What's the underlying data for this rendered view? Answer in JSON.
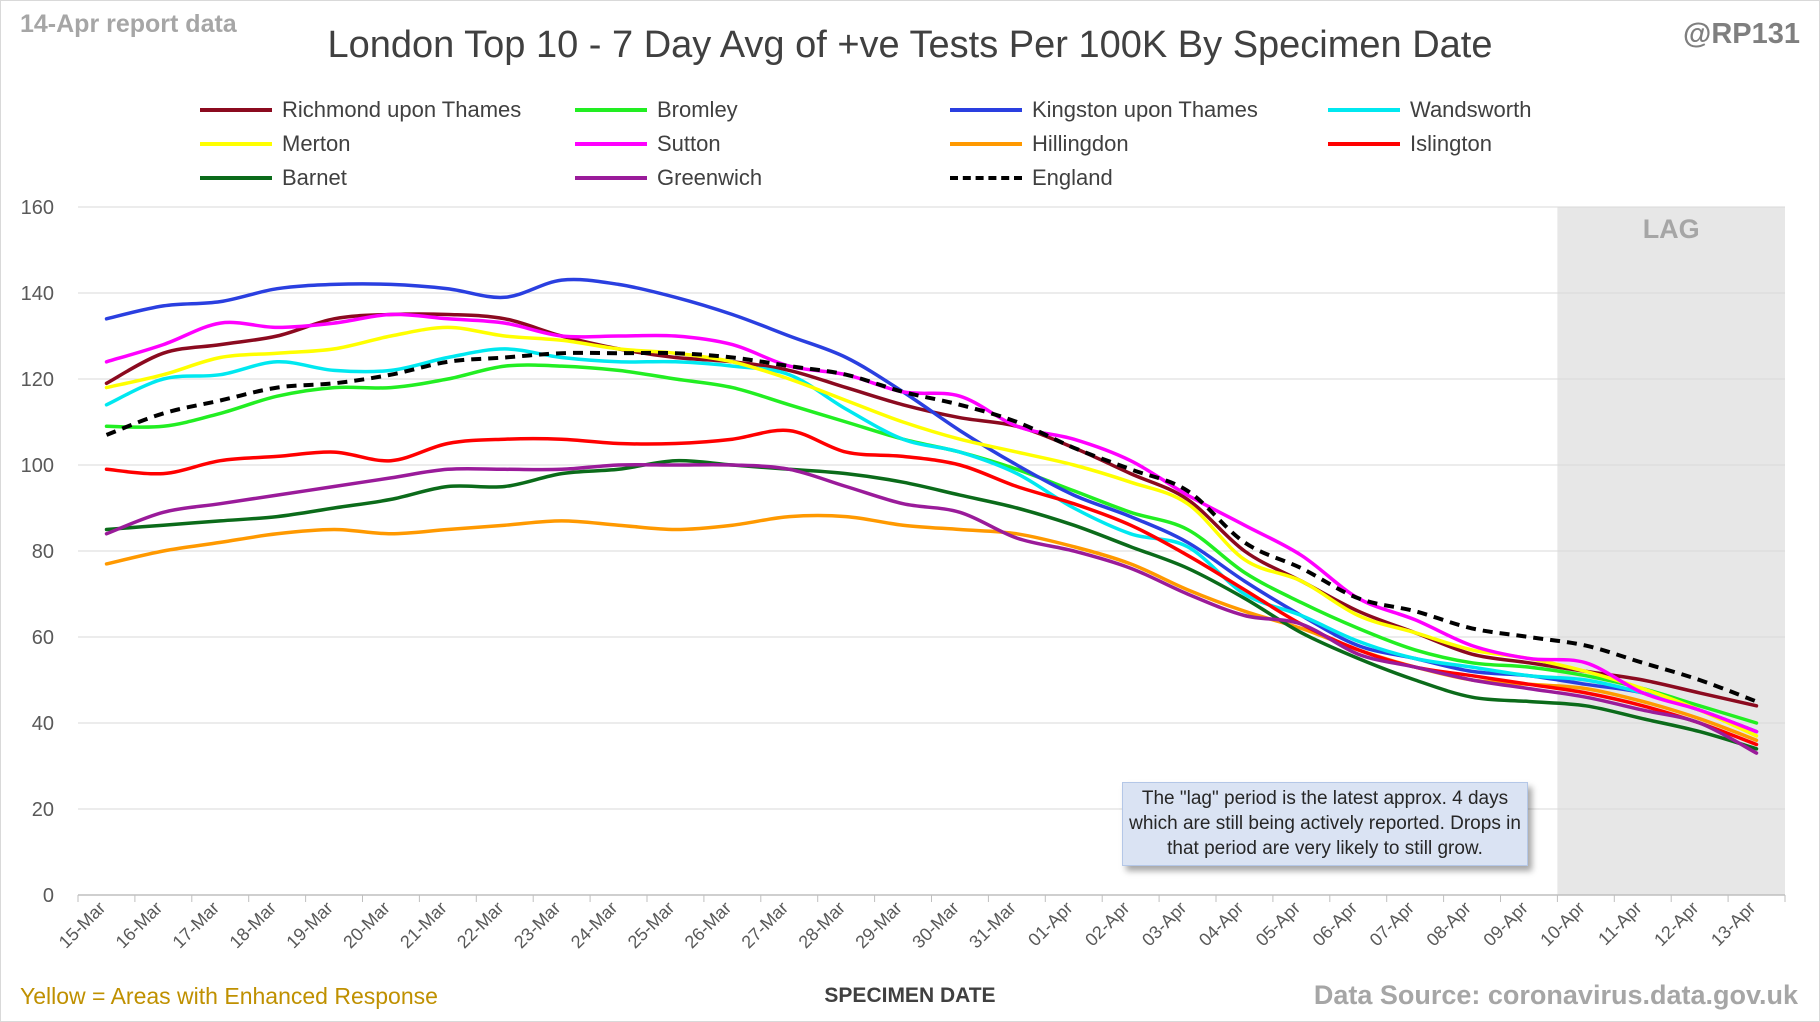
{
  "header": {
    "report_tag": "14-Apr report data",
    "handle": "@RP131",
    "title": "London Top 10 - 7 Day Avg of +ve Tests Per 100K By Specimen Date"
  },
  "footer": {
    "note_left": "Yellow = Areas with Enhanced Response",
    "x_axis_title": "SPECIMEN DATE",
    "source": "Data Source: coronavirus.data.gov.uk"
  },
  "annotation": {
    "lag_label": "LAG",
    "note": "The \"lag\" period is the latest approx. 4 days which are still being actively reported. Drops in that period are very likely to still grow."
  },
  "chart_data": {
    "type": "line",
    "title": "London Top 10 - 7 Day Avg of +ve Tests Per 100K By Specimen Date",
    "xlabel": "SPECIMEN DATE",
    "ylabel": "",
    "ylim": [
      0,
      160
    ],
    "yticks": [
      0,
      20,
      40,
      60,
      80,
      100,
      120,
      140,
      160
    ],
    "grid": true,
    "legend_position": "top",
    "shaded_region": {
      "label": "LAG",
      "from": "10-Apr",
      "to": "13-Apr",
      "color": "#e7e7e7"
    },
    "x": [
      "15-Mar",
      "16-Mar",
      "17-Mar",
      "18-Mar",
      "19-Mar",
      "20-Mar",
      "21-Mar",
      "22-Mar",
      "23-Mar",
      "24-Mar",
      "25-Mar",
      "26-Mar",
      "27-Mar",
      "28-Mar",
      "29-Mar",
      "30-Mar",
      "31-Mar",
      "01-Apr",
      "02-Apr",
      "03-Apr",
      "04-Apr",
      "05-Apr",
      "06-Apr",
      "07-Apr",
      "08-Apr",
      "09-Apr",
      "10-Apr",
      "11-Apr",
      "12-Apr",
      "13-Apr"
    ],
    "series": [
      {
        "name": "Richmond upon Thames",
        "color": "#8b0a1f",
        "dashed": false,
        "values": [
          119,
          126,
          128,
          130,
          134,
          135,
          135,
          134,
          130,
          127,
          125,
          124,
          122,
          118,
          114,
          111,
          109,
          104,
          98,
          92,
          80,
          73,
          66,
          61,
          56,
          54,
          52,
          50,
          47,
          44
        ]
      },
      {
        "name": "Bromley",
        "color": "#22ee22",
        "dashed": false,
        "values": [
          109,
          109,
          112,
          116,
          118,
          118,
          120,
          123,
          123,
          122,
          120,
          118,
          114,
          110,
          106,
          103,
          99,
          94,
          89,
          85,
          75,
          68,
          62,
          57,
          54,
          53,
          51,
          48,
          44,
          40
        ]
      },
      {
        "name": "Kingston upon Thames",
        "color": "#2a3fe0",
        "dashed": false,
        "values": [
          134,
          137,
          138,
          141,
          142,
          142,
          141,
          139,
          143,
          142,
          139,
          135,
          130,
          125,
          117,
          108,
          100,
          93,
          88,
          82,
          73,
          65,
          58,
          55,
          52,
          51,
          49,
          47,
          43,
          38
        ]
      },
      {
        "name": "Wandsworth",
        "color": "#00e8f0",
        "dashed": false,
        "values": [
          114,
          120,
          121,
          124,
          122,
          122,
          125,
          127,
          125,
          124,
          124,
          123,
          121,
          113,
          106,
          103,
          98,
          90,
          84,
          81,
          70,
          65,
          59,
          55,
          53,
          51,
          50,
          47,
          43,
          38
        ]
      },
      {
        "name": "Merton",
        "color": "#ffff00",
        "dashed": false,
        "values": [
          118,
          121,
          125,
          126,
          127,
          130,
          132,
          130,
          129,
          127,
          126,
          124,
          120,
          115,
          110,
          106,
          103,
          100,
          96,
          91,
          78,
          73,
          65,
          61,
          57,
          55,
          52,
          48,
          43,
          37
        ]
      },
      {
        "name": "Sutton",
        "color": "#ff00ff",
        "dashed": false,
        "values": [
          124,
          128,
          133,
          132,
          133,
          135,
          134,
          133,
          130,
          130,
          130,
          128,
          123,
          121,
          117,
          116,
          109,
          106,
          101,
          93,
          86,
          79,
          69,
          64,
          58,
          55,
          54,
          47,
          43,
          38
        ]
      },
      {
        "name": "Hillingdon",
        "color": "#ff9900",
        "dashed": false,
        "values": [
          77,
          80,
          82,
          84,
          85,
          84,
          85,
          86,
          87,
          86,
          85,
          86,
          88,
          88,
          86,
          85,
          84,
          81,
          77,
          71,
          66,
          62,
          57,
          53,
          50,
          49,
          48,
          45,
          41,
          36
        ]
      },
      {
        "name": "Islington",
        "color": "#ff0000",
        "dashed": false,
        "values": [
          99,
          98,
          101,
          102,
          103,
          101,
          105,
          106,
          106,
          105,
          105,
          106,
          108,
          103,
          102,
          100,
          95,
          91,
          86,
          79,
          71,
          63,
          57,
          53,
          51,
          49,
          47,
          44,
          40,
          35
        ]
      },
      {
        "name": "Barnet",
        "color": "#0b6b1a",
        "dashed": false,
        "values": [
          85,
          86,
          87,
          88,
          90,
          92,
          95,
          95,
          98,
          99,
          101,
          100,
          99,
          98,
          96,
          93,
          90,
          86,
          81,
          76,
          69,
          61,
          55,
          50,
          46,
          45,
          44,
          41,
          38,
          34
        ]
      },
      {
        "name": "Greenwich",
        "color": "#9a1b9a",
        "dashed": false,
        "values": [
          84,
          89,
          91,
          93,
          95,
          97,
          99,
          99,
          99,
          100,
          100,
          100,
          99,
          95,
          91,
          89,
          83,
          80,
          76,
          70,
          65,
          63,
          56,
          53,
          50,
          48,
          46,
          43,
          40,
          33
        ]
      },
      {
        "name": "England",
        "color": "#000000",
        "dashed": true,
        "values": [
          107,
          112,
          115,
          118,
          119,
          121,
          124,
          125,
          126,
          126,
          126,
          125,
          123,
          121,
          117,
          114,
          110,
          104,
          99,
          94,
          82,
          76,
          69,
          66,
          62,
          60,
          58,
          54,
          50,
          45
        ]
      }
    ]
  }
}
